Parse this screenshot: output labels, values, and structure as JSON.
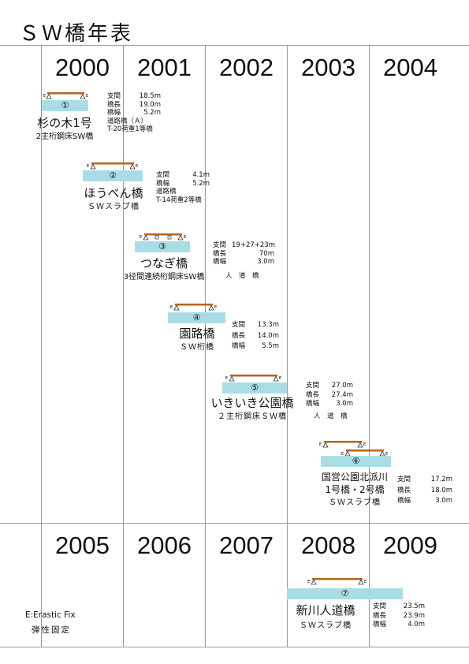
{
  "title": "ＳＷ橋年表",
  "years_top": [
    "2000",
    "2001",
    "2002",
    "2003",
    "2004"
  ],
  "years_bottom": [
    "2005",
    "2006",
    "2007",
    "2008",
    "2009"
  ],
  "bridges": [
    {
      "no": "①",
      "name": "杉の木1号",
      "type": "2主桁鋼床SW橋",
      "specs": [
        [
          "支間",
          "18.5m"
        ],
        [
          "橋長",
          "19.0m"
        ],
        [
          "橋幅",
          "5.2m"
        ]
      ],
      "extra": [
        "道路橋（Ａ）",
        "T-20荷重1等橋"
      ]
    },
    {
      "no": "②",
      "name": "ほうべん橋",
      "type": "ＳＷスラブ橋",
      "specs": [
        [
          "支間",
          "4.1m"
        ],
        [
          "橋幅",
          "5.2m"
        ]
      ],
      "extra": [
        "道路橋",
        "T-14荷重2等橋"
      ]
    },
    {
      "no": "③",
      "name": "つなぎ橋",
      "type": "3径間連続桁鋼床SW橋",
      "specs": [
        [
          "支間",
          "19+27+23m"
        ],
        [
          "橋長",
          "70m"
        ],
        [
          "橋幅",
          "3.0m"
        ]
      ],
      "extra": [
        "人　道　橋"
      ]
    },
    {
      "no": "④",
      "name": "園路橋",
      "type": "ＳＷ桁橋",
      "specs": [
        [
          "支間",
          "13.3m"
        ],
        [
          "橋長",
          "14.0m"
        ],
        [
          "橋幅",
          "5.5m"
        ]
      ],
      "extra": []
    },
    {
      "no": "⑤",
      "name": "いきいき公園橋",
      "type": "２主桁鋼床ＳＷ橋",
      "specs": [
        [
          "支間",
          "27.0m"
        ],
        [
          "橋長",
          "27.4m"
        ],
        [
          "橋幅",
          "3.0m"
        ]
      ],
      "extra": [
        "人　道　橋"
      ]
    },
    {
      "no": "⑥",
      "name": "国営公園北派川",
      "name2": "1号橋・2号橋",
      "type": "ＳＷスラブ橋",
      "specs": [
        [
          "支間",
          "17.2m"
        ],
        [
          "橋長",
          "18.0m"
        ],
        [
          "橋幅",
          "3.0m"
        ]
      ],
      "extra": []
    },
    {
      "no": "⑦",
      "name": "新川人道橋",
      "type": "ＳＷスラブ橋",
      "specs": [
        [
          "支間",
          "23.5m"
        ],
        [
          "橋長",
          "23.9m"
        ],
        [
          "橋幅",
          "4.0m"
        ]
      ],
      "extra": []
    }
  ],
  "legend": {
    "line1": "E:Erastic Fix",
    "line2": "弾性固定"
  },
  "colors": {
    "deck": "#b5651d",
    "box": "#a9dde6",
    "grid": "#9a9a9a"
  },
  "icons": [
    "bridge-elevation-icon",
    "fixed-support-icon",
    "elastic-fix-marker-icon"
  ]
}
